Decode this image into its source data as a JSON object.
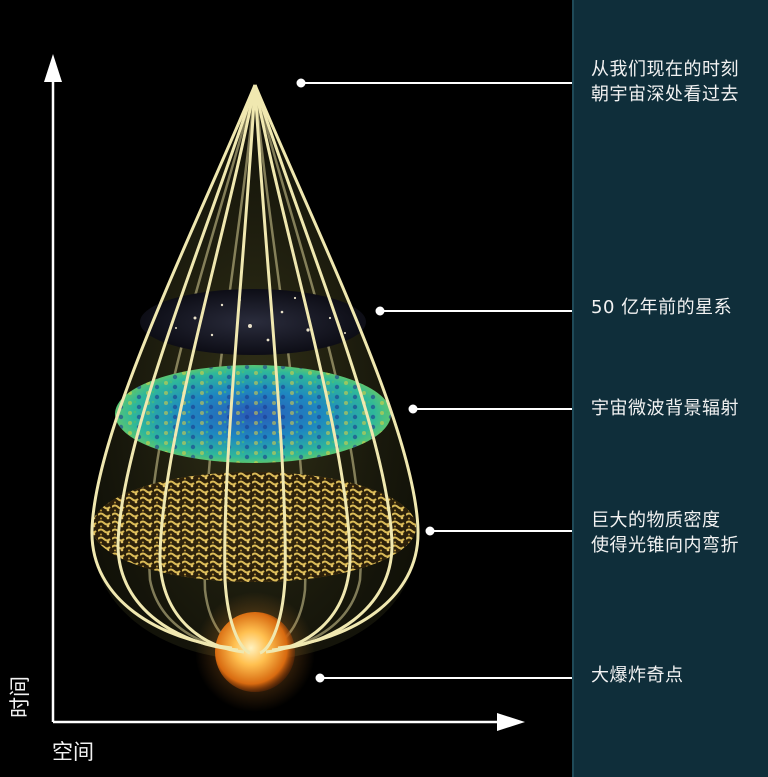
{
  "axes": {
    "y_label": "时间",
    "x_label": "空间"
  },
  "annotations": [
    {
      "line1": "从我们现在的时刻",
      "line2": "朝宇宙深处看过去"
    },
    {
      "line1": "50 亿年前的星系"
    },
    {
      "line1": "宇宙微波背景辐射"
    },
    {
      "line1": "巨大的物质密度",
      "line2": "使得光锥向内弯折"
    },
    {
      "line1": "大爆炸奇点"
    }
  ],
  "colors": {
    "background": "#000000",
    "panel": "#0f2e3a",
    "cone_lines": "#f0e8b0",
    "text": "#f2f2f2"
  }
}
